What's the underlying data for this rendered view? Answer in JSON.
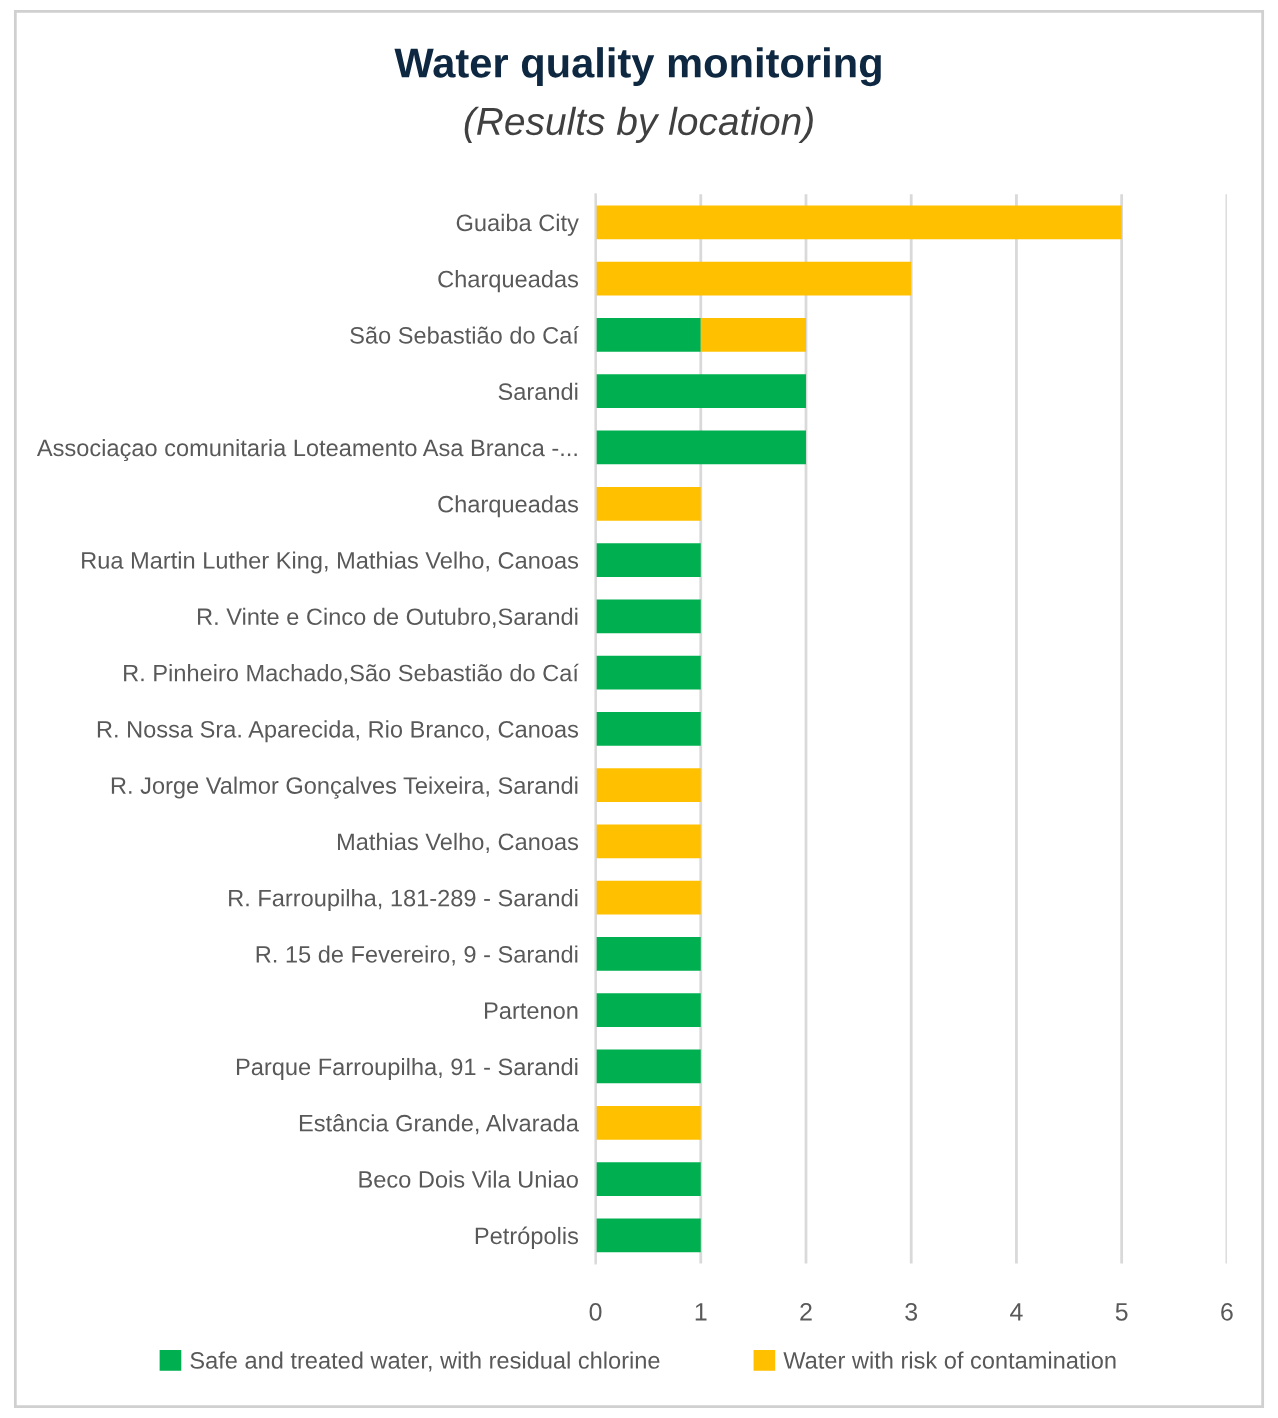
{
  "chart_data": {
    "type": "bar",
    "orientation": "horizontal",
    "stacked": true,
    "title": "Water quality monitoring",
    "subtitle": "(Results by location)",
    "categories": [
      "Guaiba City",
      "Charqueadas",
      "São Sebastião do Caí",
      "Sarandi",
      "Associaçao comunitaria Loteamento Asa Branca -...",
      "Charqueadas",
      "Rua Martin Luther King, Mathias Velho, Canoas",
      "R. Vinte e Cinco de Outubro,Sarandi",
      "R. Pinheiro Machado,São Sebastião do Caí",
      "R. Nossa Sra. Aparecida, Rio Branco, Canoas",
      "R. Jorge Valmor Gonçalves Teixeira, Sarandi",
      "Mathias Velho, Canoas",
      "R. Farroupilha, 181-289 - Sarandi",
      "R. 15 de Fevereiro, 9 - Sarandi",
      "Partenon",
      "Parque Farroupilha, 91 - Sarandi",
      "Estância Grande, Alvarada",
      "Beco Dois Vila Uniao",
      "Petrópolis"
    ],
    "series": [
      {
        "name": "Safe and treated water, with residual chlorine",
        "color": "#00b050",
        "values": [
          0,
          0,
          1,
          2,
          2,
          0,
          1,
          1,
          1,
          1,
          0,
          0,
          0,
          1,
          1,
          1,
          0,
          1,
          1
        ]
      },
      {
        "name": "Water with risk of contamination",
        "color": "#ffc000",
        "values": [
          5,
          3,
          1,
          0,
          0,
          1,
          0,
          0,
          0,
          0,
          1,
          1,
          1,
          0,
          0,
          0,
          1,
          0,
          0
        ]
      }
    ],
    "xlim": [
      0,
      6
    ],
    "xticks": [
      0,
      1,
      2,
      3,
      4,
      5,
      6
    ],
    "grid": "x",
    "legend": "bottom"
  }
}
